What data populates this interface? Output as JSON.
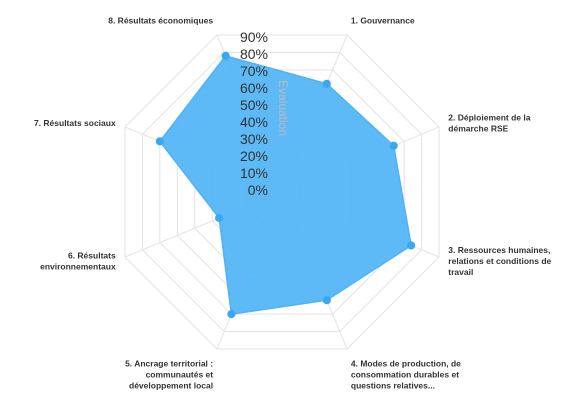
{
  "chart_data": {
    "type": "radar",
    "categories": [
      "1. Gouvernance",
      "2. Déploiement de la démarche RSE",
      "3. Ressources humaines, relations et conditions de travail",
      "4. Modes de production, de consommation durables et questions relatives...",
      "5. Ancrage territorial : communautés et développement local",
      "6. Résultats environnementaux",
      "7. Résultats sociaux",
      "8. Résultats économiques"
    ],
    "category_lines": [
      [
        "1. Gouvernance"
      ],
      [
        "2. Déploiement de la",
        "démarche RSE"
      ],
      [
        "3. Ressources humaines,",
        "relations et conditions de",
        "travail"
      ],
      [
        "4. Modes de production, de",
        "consommation durables et",
        "questions relatives..."
      ],
      [
        "5. Ancrage territorial :",
        "communautés et",
        "développement local"
      ],
      [
        "6. Résultats",
        "environnementaux"
      ],
      [
        "7. Résultats sociaux"
      ],
      [
        "8. Résultats économiques"
      ]
    ],
    "series": [
      {
        "values": [
          62,
          64,
          74,
          62,
          70,
          36,
          70,
          78
        ],
        "color": "#4db3f5"
      }
    ],
    "ylabel": "Evaluation",
    "ylim": [
      0,
      90
    ],
    "yticks": [
      "0%",
      "10%",
      "20%",
      "30%",
      "40%",
      "50%",
      "60%",
      "70%",
      "80%",
      "90%"
    ],
    "grid": true,
    "legend": "none"
  }
}
